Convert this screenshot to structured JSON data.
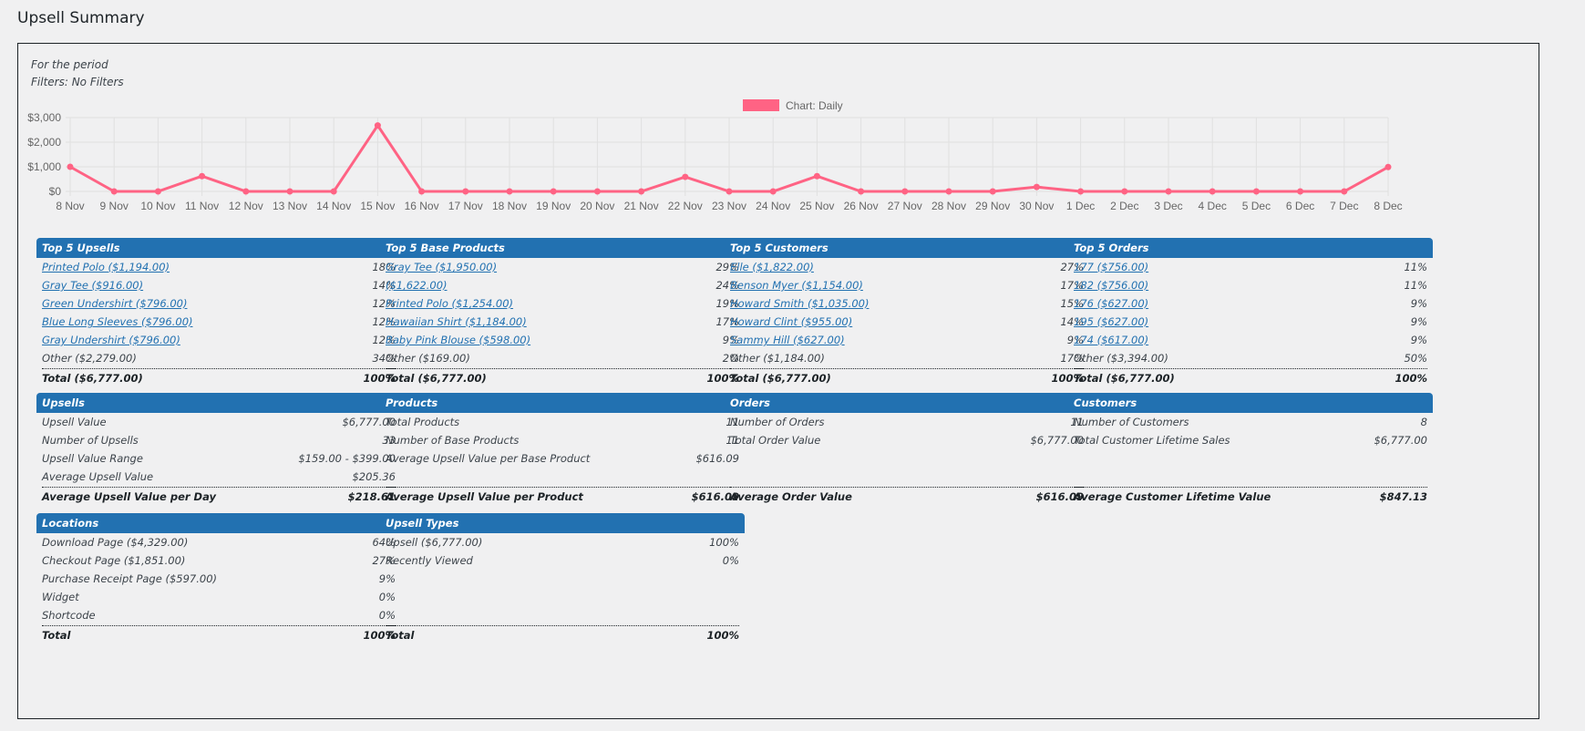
{
  "page": {
    "title": "Upsell Summary"
  },
  "period": {
    "line1": "For the period",
    "line2": "Filters: No Filters"
  },
  "chart_data": {
    "type": "line",
    "legend": "Chart: Daily",
    "legend_color": "#ff6384",
    "x": [
      "8 Nov",
      "9 Nov",
      "10 Nov",
      "11 Nov",
      "12 Nov",
      "13 Nov",
      "14 Nov",
      "15 Nov",
      "16 Nov",
      "17 Nov",
      "18 Nov",
      "19 Nov",
      "20 Nov",
      "21 Nov",
      "22 Nov",
      "23 Nov",
      "24 Nov",
      "25 Nov",
      "26 Nov",
      "27 Nov",
      "28 Nov",
      "29 Nov",
      "30 Nov",
      "1 Dec",
      "2 Dec",
      "3 Dec",
      "4 Dec",
      "5 Dec",
      "6 Dec",
      "7 Dec",
      "8 Dec"
    ],
    "values": [
      1000,
      0,
      0,
      620,
      0,
      0,
      0,
      2680,
      0,
      0,
      0,
      0,
      0,
      0,
      590,
      0,
      0,
      620,
      0,
      0,
      0,
      0,
      180,
      0,
      0,
      0,
      0,
      0,
      0,
      0,
      990
    ],
    "y_ticks": [
      "$0",
      "$1,000",
      "$2,000",
      "$3,000"
    ],
    "ylim": [
      0,
      3000
    ]
  },
  "top5_upsells": {
    "title": "Top 5 Upsells",
    "rows": [
      {
        "label": "Printed Polo ($1,194.00)",
        "value": "18%",
        "link": true
      },
      {
        "label": "Gray Tee ($916.00)",
        "value": "14%",
        "link": true
      },
      {
        "label": "Green Undershirt ($796.00)",
        "value": "12%",
        "link": true
      },
      {
        "label": "Blue Long Sleeves ($796.00)",
        "value": "12%",
        "link": true
      },
      {
        "label": "Gray Undershirt ($796.00)",
        "value": "12%",
        "link": true
      },
      {
        "label": "Other  ($2,279.00)",
        "value": "34%",
        "link": false
      }
    ],
    "total_label": "Total  ($6,777.00)",
    "total_value": "100%"
  },
  "top5_base": {
    "title": "Top 5 Base Products",
    "rows": [
      {
        "label": "Gray Tee ($1,950.00)",
        "value": "29%",
        "link": true
      },
      {
        "label": "($1,622.00)",
        "value": "24%",
        "link": true
      },
      {
        "label": "Printed Polo ($1,254.00)",
        "value": "19%",
        "link": true
      },
      {
        "label": "Hawaiian Shirt ($1,184.00)",
        "value": "17%",
        "link": true
      },
      {
        "label": "Baby Pink Blouse ($598.00)",
        "value": "9%",
        "link": true
      },
      {
        "label": "Other  ($169.00)",
        "value": "2%",
        "link": false
      }
    ],
    "total_label": "Total  ($6,777.00)",
    "total_value": "100%"
  },
  "top5_customers": {
    "title": "Top 5 Customers",
    "rows": [
      {
        "label": "Elle ($1,822.00)",
        "value": "27%",
        "link": true
      },
      {
        "label": "Benson Myer ($1,154.00)",
        "value": "17%",
        "link": true
      },
      {
        "label": "Howard Smith ($1,035.00)",
        "value": "15%",
        "link": true
      },
      {
        "label": "Howard Clint ($955.00)",
        "value": "14%",
        "link": true
      },
      {
        "label": "Sammy Hill ($627.00)",
        "value": "9%",
        "link": true
      },
      {
        "label": "Other  ($1,184.00)",
        "value": "17%",
        "link": false
      }
    ],
    "total_label": "Total  ($6,777.00)",
    "total_value": "100%"
  },
  "top5_orders": {
    "title": "Top 5 Orders",
    "rows": [
      {
        "label": "177 ($756.00)",
        "value": "11%",
        "link": true
      },
      {
        "label": "182 ($756.00)",
        "value": "11%",
        "link": true
      },
      {
        "label": "176 ($627.00)",
        "value": "9%",
        "link": true
      },
      {
        "label": "195 ($627.00)",
        "value": "9%",
        "link": true
      },
      {
        "label": "174 ($617.00)",
        "value": "9%",
        "link": true
      },
      {
        "label": "Other  ($3,394.00)",
        "value": "50%",
        "link": false
      }
    ],
    "total_label": "Total  ($6,777.00)",
    "total_value": "100%"
  },
  "upsells": {
    "title": "Upsells",
    "rows": [
      {
        "label": "Upsell Value",
        "value": "$6,777.00"
      },
      {
        "label": "Number of Upsells",
        "value": "33"
      },
      {
        "label": "Upsell Value Range",
        "value": "$159.00 - $399.00"
      },
      {
        "label": "Average Upsell Value",
        "value": "$205.36"
      }
    ],
    "total_label": "Average Upsell Value per Day",
    "total_value": "$218.61"
  },
  "products": {
    "title": "Products",
    "rows": [
      {
        "label": "Total Products",
        "value": "11"
      },
      {
        "label": "Number of Base Products",
        "value": "11"
      },
      {
        "label": "Average Upsell Value per Base Product",
        "value": "$616.09"
      }
    ],
    "total_label": "Average Upsell Value per Product",
    "total_value": "$616.09"
  },
  "orders": {
    "title": "Orders",
    "rows": [
      {
        "label": "Number of Orders",
        "value": "11"
      },
      {
        "label": "Total Order Value",
        "value": "$6,777.00"
      }
    ],
    "total_label": "Average Order Value",
    "total_value": "$616.09"
  },
  "customers": {
    "title": "Customers",
    "rows": [
      {
        "label": "Number of Customers",
        "value": "8"
      },
      {
        "label": "Total Customer Lifetime Sales",
        "value": "$6,777.00"
      }
    ],
    "total_label": "Average Customer Lifetime Value",
    "total_value": "$847.13"
  },
  "locations": {
    "title": "Locations",
    "rows": [
      {
        "label": "Download Page  ($4,329.00)",
        "value": "64%"
      },
      {
        "label": "Checkout Page  ($1,851.00)",
        "value": "27%"
      },
      {
        "label": "Purchase Receipt Page  ($597.00)",
        "value": "9%"
      },
      {
        "label": "Widget",
        "value": "0%"
      },
      {
        "label": "Shortcode",
        "value": "0%"
      }
    ],
    "total_label": "Total",
    "total_value": "100%"
  },
  "upsell_types": {
    "title": "Upsell Types",
    "rows": [
      {
        "label": "Upsell  ($6,777.00)",
        "value": "100%"
      },
      {
        "label": "Recently Viewed",
        "value": "0%"
      }
    ],
    "total_label": "Total",
    "total_value": "100%"
  }
}
